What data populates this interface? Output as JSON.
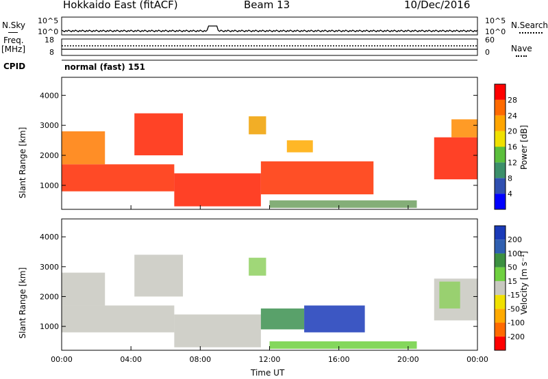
{
  "header": {
    "title": "Hokkaido East (fitACF)",
    "beam": "Beam 13",
    "date": "10/Dec/2016"
  },
  "strip": {
    "nsky_label": "N.Sky",
    "nsearch_label": "N.Search",
    "nsky_ticks": [
      "10^5",
      "10^0"
    ],
    "nsky_right_ticks": [
      "10^5",
      "10^0"
    ],
    "freq_label_1": "Freq.",
    "freq_label_2": "[MHz]",
    "freq_ticks": [
      "18",
      "8"
    ],
    "nave_label": "Nave",
    "nave_ticks": [
      "60",
      "0"
    ],
    "cpid_label": "CPID",
    "cpid_value": "normal (fast) 151"
  },
  "chart_data": [
    {
      "type": "heatmap",
      "name": "power-panel",
      "ylabel": "Slant Range [km]",
      "ylim": [
        200,
        4600
      ],
      "y_ticks": [
        "4000",
        "3000",
        "2000",
        "1000"
      ],
      "colorbar_label": "Power [dB]",
      "colorbar_ticks": [
        "28",
        "24",
        "20",
        "16",
        "12",
        "8",
        "4"
      ],
      "colorbar_colors": [
        "#0000ff",
        "#2f4fb0",
        "#3c8f6a",
        "#5bbf3c",
        "#f0e000",
        "#ffa500",
        "#ff6a00",
        "#ff0000"
      ],
      "regions": [
        {
          "t0": 0.0,
          "t1": 6.5,
          "r0": 800,
          "r1": 1700,
          "color": "#ff2a00"
        },
        {
          "t0": 0.0,
          "t1": 2.5,
          "r0": 1700,
          "r1": 2800,
          "color": "#ff7a00"
        },
        {
          "t0": 4.2,
          "t1": 7.0,
          "r0": 2000,
          "r1": 3400,
          "color": "#ff2200"
        },
        {
          "t0": 6.5,
          "t1": 11.5,
          "r0": 300,
          "r1": 1400,
          "color": "#ff2000"
        },
        {
          "t0": 10.8,
          "t1": 11.8,
          "r0": 2700,
          "r1": 3300,
          "color": "#f0a000"
        },
        {
          "t0": 11.5,
          "t1": 18.0,
          "r0": 700,
          "r1": 1800,
          "color": "#ff3000"
        },
        {
          "t0": 13.0,
          "t1": 14.5,
          "r0": 2100,
          "r1": 2500,
          "color": "#ffaa00"
        },
        {
          "t0": 12.0,
          "t1": 20.5,
          "r0": 250,
          "r1": 500,
          "color": "#6fa060"
        },
        {
          "t0": 21.5,
          "t1": 24.0,
          "r0": 1200,
          "r1": 2600,
          "color": "#ff2000"
        },
        {
          "t0": 22.5,
          "t1": 24.0,
          "r0": 2600,
          "r1": 3200,
          "color": "#ff8a00"
        }
      ]
    },
    {
      "type": "heatmap",
      "name": "velocity-panel",
      "xlabel": "Time UT",
      "ylabel": "Slant Range [km]",
      "ylim": [
        200,
        4600
      ],
      "y_ticks": [
        "4000",
        "3000",
        "2000",
        "1000"
      ],
      "x_ticks": [
        "00:00",
        "04:00",
        "08:00",
        "12:00",
        "16:00",
        "20:00",
        "00:00"
      ],
      "colorbar_label": "Velocity [m s⁻¹]",
      "colorbar_ticks": [
        "200",
        "100",
        "50",
        "15",
        "-15",
        "-50",
        "-100",
        "-200"
      ],
      "colorbar_colors": [
        "#ff0000",
        "#ff6a00",
        "#ffaa00",
        "#f0e000",
        "#c8c8c0",
        "#6fd040",
        "#3c9040",
        "#2f5fb0",
        "#1a3ab8"
      ],
      "regions": [
        {
          "t0": 0.0,
          "t1": 6.5,
          "r0": 800,
          "r1": 1700,
          "color": "#c8c8c0"
        },
        {
          "t0": 0.0,
          "t1": 2.5,
          "r0": 1700,
          "r1": 2800,
          "color": "#c8c8c0"
        },
        {
          "t0": 4.2,
          "t1": 7.0,
          "r0": 2000,
          "r1": 3400,
          "color": "#c8c8c0"
        },
        {
          "t0": 6.5,
          "t1": 11.5,
          "r0": 300,
          "r1": 1400,
          "color": "#c8c8c0"
        },
        {
          "t0": 10.8,
          "t1": 11.8,
          "r0": 2700,
          "r1": 3300,
          "color": "#8fd060"
        },
        {
          "t0": 11.5,
          "t1": 14.0,
          "r0": 900,
          "r1": 1600,
          "color": "#3c9050"
        },
        {
          "t0": 14.0,
          "t1": 17.5,
          "r0": 800,
          "r1": 1700,
          "color": "#1a3ab8"
        },
        {
          "t0": 12.0,
          "t1": 20.5,
          "r0": 250,
          "r1": 500,
          "color": "#6fd040"
        },
        {
          "t0": 21.5,
          "t1": 24.0,
          "r0": 1200,
          "r1": 2600,
          "color": "#c8c8c0"
        },
        {
          "t0": 21.8,
          "t1": 23.0,
          "r0": 1600,
          "r1": 2500,
          "color": "#8fd060"
        }
      ]
    }
  ]
}
